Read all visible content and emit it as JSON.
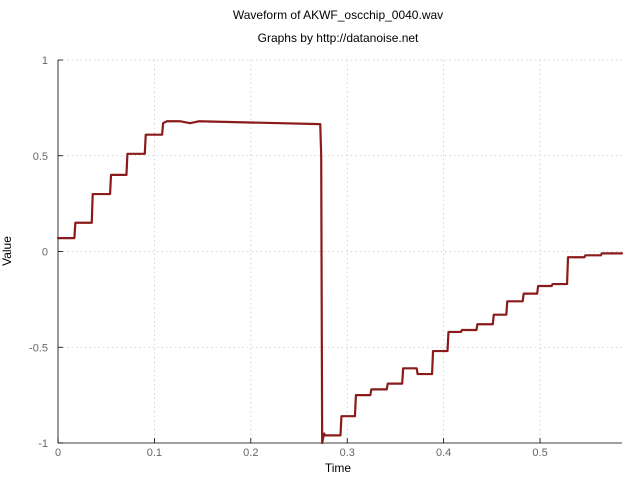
{
  "chart_data": {
    "type": "line",
    "title": "Waveform of AKWF_oscchip_0040.wav",
    "subtitle": "Graphs by http://datanoise.net",
    "xlabel": "Time",
    "ylabel": "Value",
    "xlim": [
      0,
      0.585
    ],
    "ylim": [
      -1,
      1
    ],
    "x_ticks": [
      0,
      0.1,
      0.2,
      0.3,
      0.4,
      0.5
    ],
    "x_tick_labels": [
      "0",
      "0.1",
      "0.2",
      "0.3",
      "0.4",
      "0.5"
    ],
    "y_ticks": [
      1,
      0.5,
      0,
      -0.5,
      -1
    ],
    "y_tick_labels": [
      "1",
      "0.5",
      "0",
      "-0.5",
      "-1"
    ],
    "grid": true,
    "legend": "none",
    "line_color": "#8b1a1a",
    "series": [
      {
        "x": [
          0,
          0.017,
          0.018,
          0.035,
          0.036,
          0.054,
          0.055,
          0.071,
          0.072,
          0.09,
          0.091,
          0.108,
          0.109,
          0.113,
          0.127,
          0.137,
          0.146,
          0.272,
          0.273,
          0.274,
          0.276,
          0.277,
          0.285,
          0.293,
          0.294,
          0.308,
          0.309,
          0.324,
          0.325,
          0.341,
          0.342,
          0.357,
          0.358,
          0.372,
          0.373,
          0.388,
          0.389,
          0.404,
          0.405,
          0.418,
          0.419,
          0.434,
          0.435,
          0.451,
          0.452,
          0.465,
          0.466,
          0.482,
          0.483,
          0.497,
          0.498,
          0.512,
          0.513,
          0.528,
          0.529,
          0.546,
          0.547,
          0.563,
          0.564,
          0.585
        ],
        "y": [
          0.07,
          0.07,
          0.15,
          0.15,
          0.3,
          0.3,
          0.4,
          0.4,
          0.51,
          0.51,
          0.61,
          0.61,
          0.67,
          0.68,
          0.68,
          0.67,
          0.68,
          0.665,
          0.5,
          -1.0,
          -0.95,
          -0.96,
          -0.96,
          -0.96,
          -0.86,
          -0.86,
          -0.75,
          -0.75,
          -0.72,
          -0.72,
          -0.69,
          -0.69,
          -0.61,
          -0.61,
          -0.64,
          -0.64,
          -0.52,
          -0.52,
          -0.42,
          -0.42,
          -0.41,
          -0.41,
          -0.38,
          -0.38,
          -0.33,
          -0.33,
          -0.26,
          -0.26,
          -0.22,
          -0.22,
          -0.18,
          -0.18,
          -0.17,
          -0.17,
          -0.03,
          -0.03,
          -0.02,
          -0.02,
          -0.01,
          -0.01
        ]
      }
    ]
  }
}
